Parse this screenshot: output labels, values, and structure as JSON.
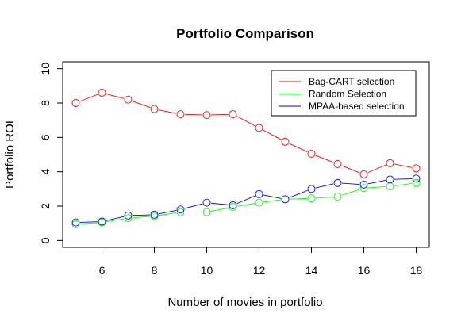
{
  "chart_data": {
    "type": "line",
    "title": "Portfolio Comparison",
    "xlabel": "Number of movies in portfolio",
    "ylabel": "Portfolio ROI",
    "xlim": [
      4.5,
      18.5
    ],
    "ylim": [
      -0.4,
      10.4
    ],
    "x_ticks": [
      6,
      8,
      10,
      12,
      14,
      16,
      18
    ],
    "y_ticks": [
      0,
      2,
      4,
      6,
      8,
      10
    ],
    "x": [
      5,
      6,
      7,
      8,
      9,
      10,
      11,
      12,
      13,
      14,
      15,
      16,
      17,
      18
    ],
    "grid": false,
    "legend_position": "top-right",
    "series": [
      {
        "name": "Bag-CART selection",
        "color": "#ff0000",
        "values": [
          8.0,
          8.6,
          8.2,
          7.65,
          7.35,
          7.3,
          7.35,
          6.55,
          5.75,
          5.05,
          4.45,
          3.85,
          4.5,
          4.2
        ]
      },
      {
        "name": "Random Selection",
        "color": "#00ff00",
        "values": [
          0.95,
          1.05,
          1.3,
          1.42,
          1.65,
          1.65,
          1.95,
          2.2,
          2.4,
          2.45,
          2.55,
          3.05,
          3.15,
          3.35
        ]
      },
      {
        "name": "MPAA-based selection",
        "color": "#0000ff",
        "values": [
          1.05,
          1.1,
          1.45,
          1.5,
          1.8,
          2.2,
          2.05,
          2.7,
          2.4,
          3.0,
          3.35,
          3.25,
          3.55,
          3.6
        ]
      }
    ]
  }
}
